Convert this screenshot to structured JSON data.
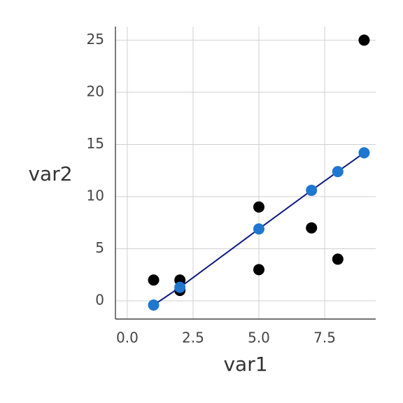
{
  "chart_data": {
    "type": "scatter",
    "x_label": "var1",
    "y_label": "var2",
    "xlim": [
      -0.45,
      9.44
    ],
    "ylim": [
      -1.74,
      26.3
    ],
    "xticks": [
      {
        "value": 0,
        "label": "0.0"
      },
      2.5,
      {
        "value": 5,
        "label": "5.0"
      },
      7.5
    ],
    "yticks": [
      0,
      5,
      10,
      15,
      20,
      25
    ],
    "grid": true,
    "series": [
      {
        "x": [
          1,
          2,
          2,
          5,
          5,
          7,
          8,
          9
        ],
        "values": [
          2,
          2,
          1,
          9,
          3,
          7,
          4,
          25
        ],
        "color": "#000000",
        "line": false
      },
      {
        "x": [
          1,
          2,
          5,
          7,
          8,
          9
        ],
        "values": [
          -0.4,
          1.3,
          6.9,
          10.6,
          12.4,
          14.2
        ],
        "color": "#1f77d0",
        "line": true,
        "line_color": "#0d1a80"
      }
    ]
  }
}
